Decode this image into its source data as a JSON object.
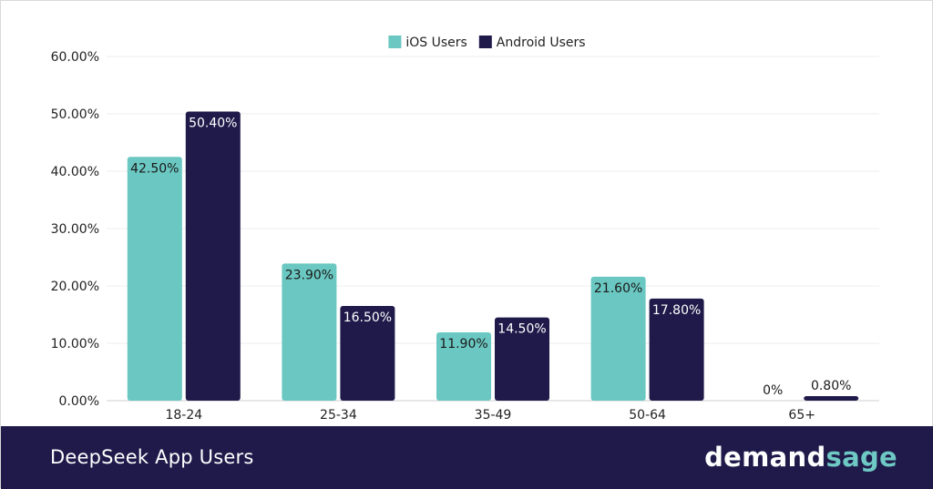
{
  "chart_data": {
    "type": "bar",
    "title": "DeepSeek App Users",
    "categories": [
      "18-24",
      "25-34",
      "35-49",
      "50-64",
      "65+"
    ],
    "series": [
      {
        "name": "iOS Users",
        "color": "#6ac7c1",
        "values": [
          42.5,
          23.9,
          11.9,
          21.6,
          0
        ]
      },
      {
        "name": "Android Users",
        "color": "#1f1a4a",
        "values": [
          50.4,
          16.5,
          14.5,
          17.8,
          0.8
        ]
      }
    ],
    "data_labels": [
      [
        "42.50%",
        "23.90%",
        "11.90%",
        "21.60%",
        "0%"
      ],
      [
        "50.40%",
        "16.50%",
        "14.50%",
        "17.80%",
        "0.80%"
      ]
    ],
    "yticks": [
      "0.00%",
      "10.00%",
      "20.00%",
      "30.00%",
      "40.00%",
      "50.00%",
      "60.00%"
    ],
    "ylim": [
      0,
      60
    ],
    "xlabel": "",
    "ylabel": "",
    "grid": true,
    "legend_position": "top-center"
  },
  "footer": {
    "title": "DeepSeek App Users",
    "brand_part1": "demand",
    "brand_part2": "sage"
  }
}
